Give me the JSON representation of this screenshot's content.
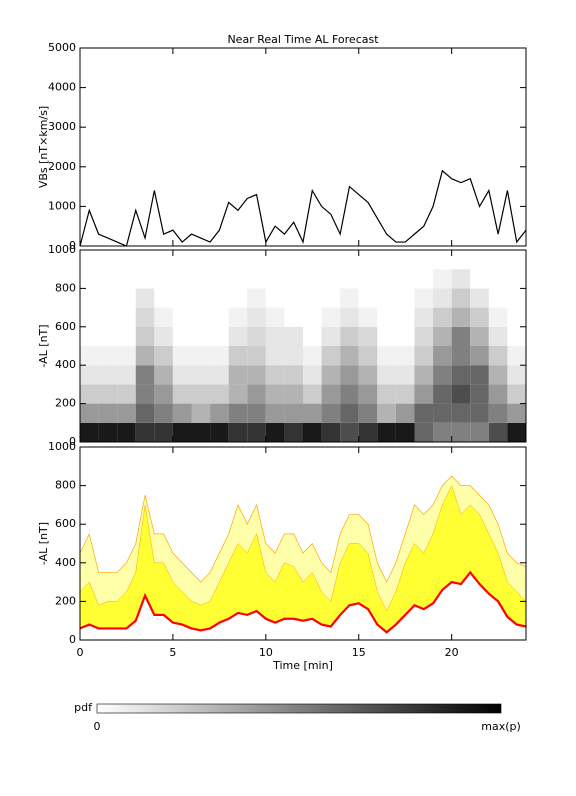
{
  "chart_data": [
    {
      "type": "line",
      "title": "Near Real Time AL Forecast",
      "ylabel": "VBs [nT×km/s]",
      "x": [
        0,
        0.5,
        1,
        1.5,
        2,
        2.5,
        3,
        3.5,
        4,
        4.5,
        5,
        5.5,
        6,
        6.5,
        7,
        7.5,
        8,
        8.5,
        9,
        9.5,
        10,
        10.5,
        11,
        11.5,
        12,
        12.5,
        13,
        13.5,
        14,
        14.5,
        15,
        15.5,
        16,
        16.5,
        17,
        17.5,
        18,
        18.5,
        19,
        19.5,
        20,
        20.5,
        21,
        21.5,
        22,
        22.5,
        23,
        23.5,
        24
      ],
      "series": [
        {
          "color": "#000000",
          "values": [
            0,
            900,
            300,
            200,
            100,
            0,
            900,
            200,
            1400,
            300,
            400,
            100,
            300,
            200,
            100,
            400,
            1100,
            900,
            1200,
            1300,
            100,
            500,
            300,
            600,
            100,
            1400,
            1000,
            800,
            300,
            1500,
            1300,
            1100,
            700,
            300,
            100,
            100,
            300,
            500,
            1000,
            1900,
            1700,
            1600,
            1700,
            1000,
            1400,
            300,
            1400,
            100,
            400
          ]
        }
      ],
      "xlim": [
        0,
        24
      ],
      "xticks": [
        0,
        5,
        10,
        15,
        20
      ],
      "ylim": [
        0,
        5000
      ],
      "yticks": [
        0,
        1000,
        2000,
        3000,
        4000,
        5000
      ]
    },
    {
      "type": "heatmap",
      "ylabel": "-AL [nT]",
      "colormap": "gray_r",
      "xbins": [
        0,
        1,
        2,
        3,
        4,
        5,
        6,
        7,
        8,
        9,
        10,
        11,
        12,
        13,
        14,
        15,
        16,
        17,
        18,
        19,
        20,
        21,
        22,
        23,
        24
      ],
      "ybins": [
        0,
        100,
        200,
        300,
        400,
        500,
        600,
        700,
        800,
        900,
        1000
      ],
      "z": [
        [
          0.9,
          0.9,
          0.9,
          0.8,
          0.8,
          0.9,
          0.9,
          0.9,
          0.8,
          0.8,
          0.9,
          0.8,
          0.9,
          0.8,
          0.7,
          0.8,
          0.9,
          0.9,
          0.6,
          0.5,
          0.5,
          0.5,
          0.7,
          0.9
        ],
        [
          0.4,
          0.4,
          0.4,
          0.6,
          0.5,
          0.4,
          0.3,
          0.4,
          0.5,
          0.5,
          0.4,
          0.4,
          0.4,
          0.5,
          0.6,
          0.5,
          0.3,
          0.4,
          0.6,
          0.6,
          0.6,
          0.6,
          0.5,
          0.4
        ],
        [
          0.2,
          0.2,
          0.2,
          0.5,
          0.4,
          0.2,
          0.2,
          0.2,
          0.3,
          0.4,
          0.3,
          0.3,
          0.2,
          0.4,
          0.5,
          0.4,
          0.2,
          0.2,
          0.4,
          0.6,
          0.7,
          0.6,
          0.4,
          0.2
        ],
        [
          0.1,
          0.1,
          0.1,
          0.5,
          0.3,
          0.1,
          0.1,
          0.1,
          0.3,
          0.3,
          0.2,
          0.2,
          0.1,
          0.3,
          0.4,
          0.3,
          0.1,
          0.1,
          0.3,
          0.5,
          0.6,
          0.6,
          0.3,
          0.1
        ],
        [
          0.05,
          0.05,
          0.05,
          0.3,
          0.2,
          0.05,
          0.05,
          0.05,
          0.2,
          0.2,
          0.1,
          0.1,
          0.05,
          0.2,
          0.3,
          0.2,
          0.05,
          0.05,
          0.2,
          0.4,
          0.5,
          0.4,
          0.2,
          0.05
        ],
        [
          0,
          0,
          0,
          0.2,
          0.1,
          0,
          0,
          0,
          0.1,
          0.15,
          0.1,
          0.1,
          0,
          0.1,
          0.2,
          0.15,
          0,
          0,
          0.15,
          0.3,
          0.5,
          0.3,
          0.1,
          0
        ],
        [
          0,
          0,
          0,
          0.15,
          0.05,
          0,
          0,
          0,
          0.05,
          0.1,
          0.05,
          0,
          0,
          0.05,
          0.1,
          0.05,
          0,
          0,
          0.1,
          0.2,
          0.3,
          0.2,
          0.05,
          0
        ],
        [
          0,
          0,
          0,
          0.1,
          0,
          0,
          0,
          0,
          0,
          0.05,
          0,
          0,
          0,
          0,
          0.05,
          0,
          0,
          0,
          0.05,
          0.1,
          0.2,
          0.1,
          0,
          0
        ],
        [
          0,
          0,
          0,
          0,
          0,
          0,
          0,
          0,
          0,
          0,
          0,
          0,
          0,
          0,
          0,
          0,
          0,
          0,
          0,
          0.05,
          0.1,
          0,
          0,
          0
        ],
        [
          0,
          0,
          0,
          0,
          0,
          0,
          0,
          0,
          0,
          0,
          0,
          0,
          0,
          0,
          0,
          0,
          0,
          0,
          0,
          0,
          0,
          0,
          0,
          0
        ]
      ],
      "xlim": [
        0,
        24
      ],
      "xticks": [
        0,
        5,
        10,
        15,
        20
      ],
      "ylim": [
        0,
        1000
      ],
      "yticks": [
        0,
        200,
        400,
        600,
        800,
        1000
      ]
    },
    {
      "type": "band",
      "ylabel": "-AL [nT]",
      "xlabel": "Time [min]",
      "xtick_labels": true,
      "edge_color": "#ffa500",
      "x": [
        0,
        0.5,
        1,
        1.5,
        2,
        2.5,
        3,
        3.5,
        4,
        4.5,
        5,
        5.5,
        6,
        6.5,
        7,
        7.5,
        8,
        8.5,
        9,
        9.5,
        10,
        10.5,
        11,
        11.5,
        12,
        12.5,
        13,
        13.5,
        14,
        14.5,
        15,
        15.5,
        16,
        16.5,
        17,
        17.5,
        18,
        18.5,
        19,
        19.5,
        20,
        20.5,
        21,
        21.5,
        22,
        22.5,
        23,
        23.5,
        24
      ],
      "series": [
        {
          "color": "#ff0000",
          "values": [
            60,
            80,
            60,
            60,
            60,
            60,
            100,
            230,
            130,
            130,
            90,
            80,
            60,
            50,
            60,
            90,
            110,
            140,
            130,
            150,
            110,
            90,
            110,
            110,
            100,
            110,
            80,
            70,
            130,
            180,
            190,
            160,
            80,
            40,
            80,
            130,
            180,
            160,
            190,
            260,
            300,
            290,
            350,
            290,
            240,
            200,
            120,
            80,
            70
          ]
        },
        {
          "color": "#ffff33",
          "values": [
            250,
            300,
            180,
            200,
            200,
            250,
            350,
            700,
            400,
            400,
            300,
            250,
            200,
            180,
            200,
            300,
            400,
            500,
            450,
            550,
            350,
            300,
            400,
            380,
            300,
            350,
            250,
            200,
            400,
            500,
            500,
            450,
            250,
            150,
            250,
            400,
            500,
            450,
            550,
            700,
            800,
            650,
            700,
            650,
            550,
            450,
            300,
            250,
            200
          ]
        },
        {
          "color": "#ffffaa",
          "values": [
            450,
            550,
            350,
            350,
            350,
            400,
            500,
            750,
            550,
            550,
            450,
            400,
            350,
            300,
            350,
            450,
            550,
            700,
            600,
            700,
            500,
            450,
            550,
            550,
            450,
            500,
            400,
            350,
            550,
            650,
            650,
            600,
            400,
            300,
            400,
            550,
            700,
            650,
            700,
            800,
            850,
            800,
            800,
            750,
            700,
            600,
            450,
            400,
            380
          ]
        }
      ],
      "xlim": [
        0,
        24
      ],
      "xticks": [
        0,
        5,
        10,
        15,
        20
      ],
      "ylim": [
        0,
        1000
      ],
      "yticks": [
        0,
        200,
        400,
        600,
        800,
        1000
      ]
    }
  ],
  "colorbar": {
    "label": "pdf",
    "min_label": "0",
    "max_label": "max(p)"
  }
}
